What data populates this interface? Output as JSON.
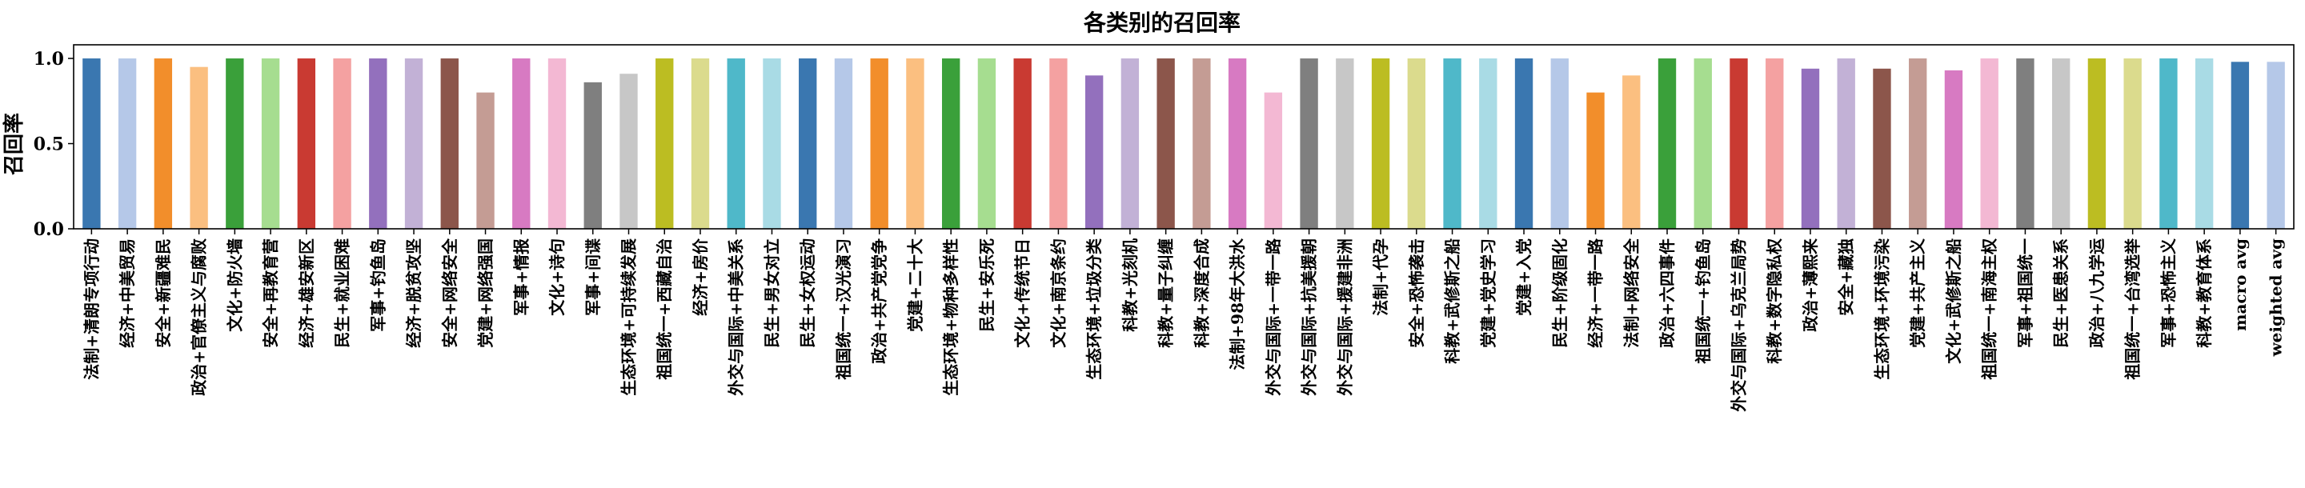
{
  "chart_data": {
    "type": "bar",
    "title": "各类别的召回率",
    "xlabel": "",
    "ylabel": "召回率",
    "ylim": [
      0,
      1.08
    ],
    "yticks": [
      "0.0",
      "0.5",
      "1.0"
    ],
    "grid": false,
    "legend": "none",
    "categories": [
      "法制+清朗专项行动",
      "经济+中美贸易",
      "安全+新疆难民",
      "政治+官僚主义与腐败",
      "文化+防火墙",
      "安全+再教育营",
      "经济+雄安新区",
      "民生+就业困难",
      "军事+钓鱼岛",
      "经济+脱贫攻坚",
      "安全+网络安全",
      "党建+网络强国",
      "军事+情报",
      "文化+诗句",
      "军事+间谍",
      "生态环境+可持续发展",
      "祖国统一+西藏自治",
      "经济+房价",
      "外交与国际+中美关系",
      "民生+男女对立",
      "民生+女权运动",
      "祖国统一+汉光演习",
      "政治+共产党党争",
      "党建+二十大",
      "生态环境+物种多样性",
      "民生+安乐死",
      "文化+传统节日",
      "文化+南京条约",
      "生态环境+垃圾分类",
      "科教+光刻机",
      "科教+量子纠缠",
      "科教+深度合成",
      "法制+98年大洪水",
      "外交与国际+一带一路",
      "外交与国际+抗美援朝",
      "外交与国际+援建非洲",
      "法制+代孕",
      "安全+恐怖袭击",
      "科教+武修斯之船",
      "党建+党史学习",
      "党建+入党",
      "民生+阶级固化",
      "经济+一带一路",
      "法制+网络安全",
      "政治+六四事件",
      "祖国统一+钓鱼岛",
      "外交与国际+乌克兰局势",
      "科教+数字隐私权",
      "政治+薄熙来",
      "安全+藏独",
      "生态环境+环境污染",
      "党建+共产主义",
      "文化+武修斯之船",
      "祖国统一+南海主权",
      "军事+祖国统一",
      "民生+医患关系",
      "政治+八九学运",
      "祖国统一+台湾选举",
      "军事+恐怖主义",
      "科教+教育体系",
      "macro avg",
      "weighted avg"
    ],
    "values": [
      1.0,
      1.0,
      1.0,
      0.95,
      1.0,
      1.0,
      1.0,
      1.0,
      1.0,
      1.0,
      1.0,
      0.8,
      1.0,
      1.0,
      0.86,
      0.91,
      1.0,
      1.0,
      1.0,
      1.0,
      1.0,
      1.0,
      1.0,
      1.0,
      1.0,
      1.0,
      1.0,
      1.0,
      0.9,
      1.0,
      1.0,
      1.0,
      1.0,
      0.8,
      1.0,
      1.0,
      1.0,
      1.0,
      1.0,
      1.0,
      1.0,
      1.0,
      0.8,
      0.9,
      1.0,
      1.0,
      1.0,
      1.0,
      0.94,
      1.0,
      0.94,
      1.0,
      0.93,
      1.0,
      1.0,
      1.0,
      1.0,
      1.0,
      1.0,
      1.0,
      0.98,
      0.98
    ],
    "colors": [
      "#3a77b0",
      "#b5c8e8",
      "#f28e2b",
      "#fbbf80",
      "#3aa03a",
      "#a6dd90",
      "#c93a32",
      "#f4a1a1",
      "#9370bd",
      "#c2b1d6",
      "#8c564b",
      "#c49c94",
      "#d77ac2",
      "#f3b8d3",
      "#7f7f7f",
      "#c7c7c7",
      "#bcbd22",
      "#dbdb8d",
      "#4fb8c9",
      "#a9dbe5"
    ]
  }
}
